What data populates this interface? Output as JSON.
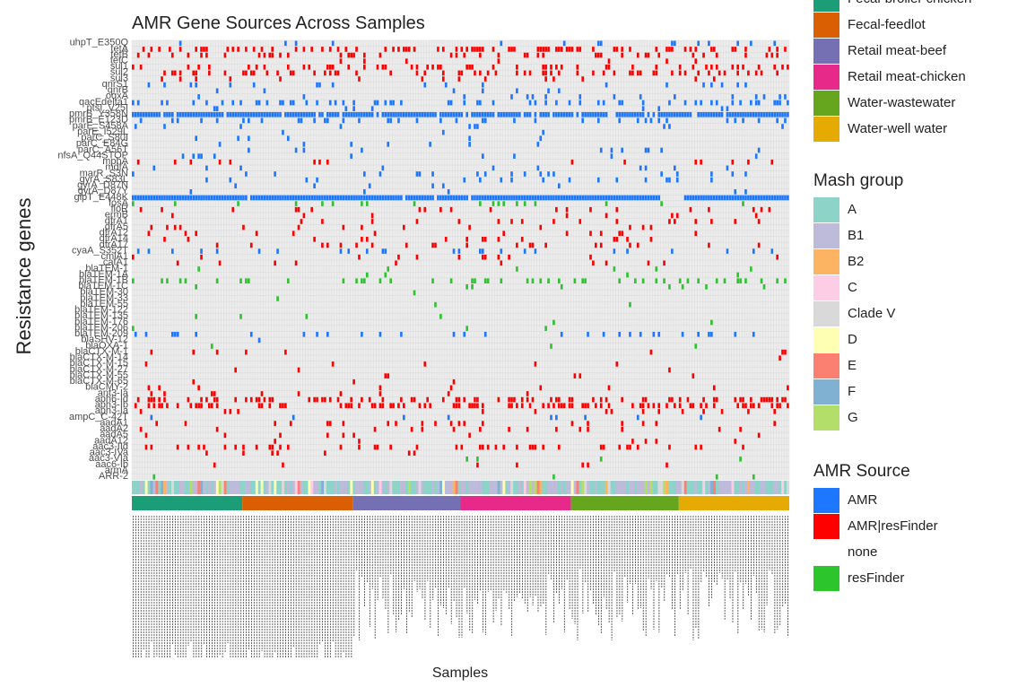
{
  "chart_data": {
    "type": "heatmap",
    "title": "AMR Gene Sources Across Samples",
    "xlabel": "Samples",
    "ylabel": "Resistance genes",
    "genes": [
      "uhpT_E350Q",
      "tetA",
      "tetB",
      "tetC",
      "sul1",
      "sul2",
      "sul3",
      "qnrS1",
      "qnrB",
      "oqxA",
      "qacEdelta1",
      "ptsI_V25I",
      "pmrB_Y358N",
      "pmrB_E123D",
      "parE_S458A",
      "parE_I529L",
      "parC_S80I",
      "parC_E84G",
      "parC_A56T",
      "nfsA_Q44STOP",
      "mphA",
      "mdfA",
      "marR_S3N",
      "gyrA_S83L",
      "gyrA_D87N",
      "gyrA_D87Y",
      "glpT_E448K",
      "fosA",
      "floR",
      "ermB",
      "dfrA1",
      "dfrA5",
      "dfrA12",
      "dfrA14",
      "dfrA17",
      "cyaA_S352T",
      "cmlA1",
      "catA1",
      "blaTEM-1",
      "blaTEM-1A",
      "blaTEM-1B",
      "blaTEM-1C",
      "blaTEM-30",
      "blaTEM-33",
      "blaTEM-55",
      "blaTEM-122",
      "blaTEM-135",
      "blaTEM-176",
      "blaTEM-206",
      "blaTEM-209",
      "blaSHV-12",
      "blaOXA-1",
      "blaCTX-M-1",
      "blaCTX-M-14",
      "blaCTX-M-15",
      "blaCTX-M-27",
      "blaCTX-M-55",
      "blaCTX-M-65",
      "blaCMY-2",
      "ant3-Ia",
      "aph6-Id",
      "aph3-Ib",
      "aph3-Ia",
      "ampC_C-42T",
      "aadA1",
      "aadA2",
      "aadA5",
      "aadA12",
      "aac3-IId",
      "aac3-IVa",
      "aac3-VIa",
      "aac6-Ib",
      "armA",
      "ARR-2"
    ],
    "n_samples": 250,
    "sample_labels_note": "",
    "legends": [
      {
        "title": "",
        "items": [
          {
            "label": "Fecal-broiler chicken",
            "color": "#1b9e77"
          },
          {
            "label": "Fecal-feedlot",
            "color": "#d95f02"
          },
          {
            "label": "Retail meat-beef",
            "color": "#7570b3"
          },
          {
            "label": "Retail meat-chicken",
            "color": "#e7298a"
          },
          {
            "label": "Water-wastewater",
            "color": "#66a61e"
          },
          {
            "label": "Water-well water",
            "color": "#e6ab02"
          }
        ]
      },
      {
        "title": "Mash group",
        "items": [
          {
            "label": "A",
            "color": "#8dd3c7"
          },
          {
            "label": "B1",
            "color": "#bebada"
          },
          {
            "label": "B2",
            "color": "#fdb462"
          },
          {
            "label": "C",
            "color": "#fccde5"
          },
          {
            "label": "Clade V",
            "color": "#d9d9d9"
          },
          {
            "label": "D",
            "color": "#ffffb3"
          },
          {
            "label": "E",
            "color": "#fb8072"
          },
          {
            "label": "F",
            "color": "#80b1d3"
          },
          {
            "label": "G",
            "color": "#b3de69"
          }
        ]
      },
      {
        "title": "AMR Source",
        "items": [
          {
            "label": "AMR",
            "color": "#1e78ff"
          },
          {
            "label": "AMR|resFinder",
            "color": "#ff0000"
          },
          {
            "label": "none",
            "color": "#ffffff"
          },
          {
            "label": "resFinder",
            "color": "#2cc52c"
          }
        ]
      }
    ],
    "source_blocks": [
      {
        "source": "Fecal-broiler chicken",
        "from": 0,
        "to": 42
      },
      {
        "source": "Fecal-feedlot",
        "from": 42,
        "to": 84
      },
      {
        "source": "Retail meat-beef",
        "from": 84,
        "to": 125
      },
      {
        "source": "Retail meat-chicken",
        "from": 125,
        "to": 167
      },
      {
        "source": "Water-wastewater",
        "from": 167,
        "to": 208
      },
      {
        "source": "Water-well water",
        "from": 208,
        "to": 250
      }
    ],
    "gene_density": {
      "uhpT_E350Q": [
        "AMR",
        0.08
      ],
      "tetA": [
        "AMR|resFinder",
        0.28
      ],
      "tetB": [
        "AMR|resFinder",
        0.22
      ],
      "tetC": [
        "AMR|resFinder",
        0.03
      ],
      "sul1": [
        "AMR|resFinder",
        0.22
      ],
      "sul2": [
        "AMR|resFinder",
        0.28
      ],
      "sul3": [
        "AMR|resFinder",
        0.04
      ],
      "qnrS1": [
        "AMR",
        0.06
      ],
      "qnrB": [
        "AMR",
        0.02
      ],
      "oqxA": [
        "AMR",
        0.04
      ],
      "qacEdelta1": [
        "AMR",
        0.22
      ],
      "ptsI_V25I": [
        "AMR",
        0.05
      ],
      "pmrB_Y358N": [
        "AMR",
        0.85
      ],
      "pmrB_E123D": [
        "AMR",
        0.15
      ],
      "parE_S458A": [
        "AMR",
        0.03
      ],
      "parE_I529L": [
        "AMR",
        0.02
      ],
      "parC_S80I": [
        "AMR",
        0.03
      ],
      "parC_E84G": [
        "AMR",
        0.02
      ],
      "parC_A56T": [
        "AMR",
        0.04
      ],
      "nfsA_Q44STOP": [
        "AMR",
        0.02
      ],
      "mphA": [
        "AMR|resFinder",
        0.05
      ],
      "mdfA": [
        "AMR",
        0.03
      ],
      "marR_S3N": [
        "AMR",
        0.05
      ],
      "gyrA_S83L": [
        "AMR",
        0.06
      ],
      "gyrA_D87N": [
        "AMR",
        0.03
      ],
      "gyrA_D87Y": [
        "AMR",
        0.02
      ],
      "glpT_E448K": [
        "AMR",
        0.97
      ],
      "fosA": [
        "resFinder",
        0.06
      ],
      "floR": [
        "AMR|resFinder",
        0.08
      ],
      "ermB": [
        "AMR|resFinder",
        0.03
      ],
      "dfrA1": [
        "AMR|resFinder",
        0.06
      ],
      "dfrA5": [
        "AMR|resFinder",
        0.03
      ],
      "dfrA12": [
        "AMR|resFinder",
        0.05
      ],
      "dfrA14": [
        "AMR|resFinder",
        0.07
      ],
      "dfrA17": [
        "AMR|resFinder",
        0.06
      ],
      "cyaA_S352T": [
        "AMR",
        0.12
      ],
      "cmlA1": [
        "AMR|resFinder",
        0.03
      ],
      "catA1": [
        "AMR|resFinder",
        0.02
      ],
      "blaTEM-1": [
        "resFinder",
        0.02
      ],
      "blaTEM-1A": [
        "resFinder",
        0.02
      ],
      "blaTEM-1B": [
        "resFinder",
        0.16
      ],
      "blaTEM-1C": [
        "resFinder",
        0.03
      ],
      "blaTEM-30": [
        "resFinder",
        0.01
      ],
      "blaTEM-33": [
        "resFinder",
        0.01
      ],
      "blaTEM-55": [
        "resFinder",
        0.02
      ],
      "blaTEM-122": [
        "resFinder",
        0.01
      ],
      "blaTEM-135": [
        "resFinder",
        0.01
      ],
      "blaTEM-176": [
        "resFinder",
        0.01
      ],
      "blaTEM-206": [
        "resFinder",
        0.01
      ],
      "blaTEM-209": [
        "AMR",
        0.1
      ],
      "blaSHV-12": [
        "AMR",
        0.01
      ],
      "blaOXA-1": [
        "resFinder",
        0.01
      ],
      "blaCTX-M-1": [
        "AMR|resFinder",
        0.02
      ],
      "blaCTX-M-14": [
        "AMR|resFinder",
        0.01
      ],
      "blaCTX-M-15": [
        "AMR|resFinder",
        0.02
      ],
      "blaCTX-M-27": [
        "AMR|resFinder",
        0.02
      ],
      "blaCTX-M-55": [
        "AMR|resFinder",
        0.02
      ],
      "blaCTX-M-65": [
        "AMR|resFinder",
        0.02
      ],
      "blaCMY-2": [
        "AMR|resFinder",
        0.05
      ],
      "ant3-Ia": [
        "AMR|resFinder",
        0.04
      ],
      "aph6-Id": [
        "AMR|resFinder",
        0.32
      ],
      "aph3-Ib": [
        "AMR|resFinder",
        0.3
      ],
      "aph3-Ia": [
        "AMR|resFinder",
        0.05
      ],
      "ampC_C-42T": [
        "AMR",
        0.03
      ],
      "aadA1": [
        "AMR|resFinder",
        0.06
      ],
      "aadA2": [
        "AMR|resFinder",
        0.05
      ],
      "aadA5": [
        "AMR|resFinder",
        0.04
      ],
      "aadA12": [
        "AMR|resFinder",
        0.03
      ],
      "aac3-IId": [
        "AMR|resFinder",
        0.18
      ],
      "aac3-IVa": [
        "AMR|resFinder",
        0.02
      ],
      "aac3-VIa": [
        "resFinder",
        0.01
      ],
      "aac6-Ib": [
        "AMR|resFinder",
        0.02
      ],
      "armA": [
        "AMR",
        0.01
      ],
      "ARR-2": [
        "resFinder",
        0.01
      ]
    }
  }
}
